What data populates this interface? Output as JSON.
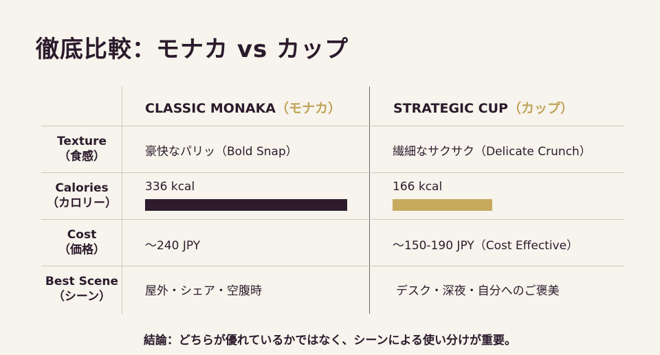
{
  "title": "徹底比較：モナカ vs カップ",
  "columns": [
    {
      "name": "CLASSIC MONAKA",
      "jp": "（モナカ）"
    },
    {
      "name": "STRATEGIC CUP",
      "jp": "（カップ）"
    }
  ],
  "rows": [
    {
      "label_en": "Texture",
      "label_jp": "（食感）",
      "a": "豪快なパリッ（Bold Snap）",
      "b": "繊細なサクサク（Delicate Crunch）"
    },
    {
      "label_en": "Calories",
      "label_jp": "（カロリー）",
      "a": "336 kcal",
      "b": "166 kcal"
    },
    {
      "label_en": "Cost",
      "label_jp": "（価格）",
      "a": "～240 JPY",
      "b": "～150-190 JPY（Cost Effective）"
    },
    {
      "label_en": "Best Scene",
      "label_jp": "（シーン）",
      "a": "屋外・シェア・空腹時",
      "b": "デスク・深夜・自分へのご褒美"
    }
  ],
  "calories": {
    "a": 336,
    "b": 166
  },
  "colors": {
    "monaka_bar": "#2e1c2e",
    "cup_bar": "#c7aa5e",
    "accent": "#bfa45a"
  },
  "conclusion": "結論：どちらが優れているかではなく、シーンによる使い分けが重要。"
}
